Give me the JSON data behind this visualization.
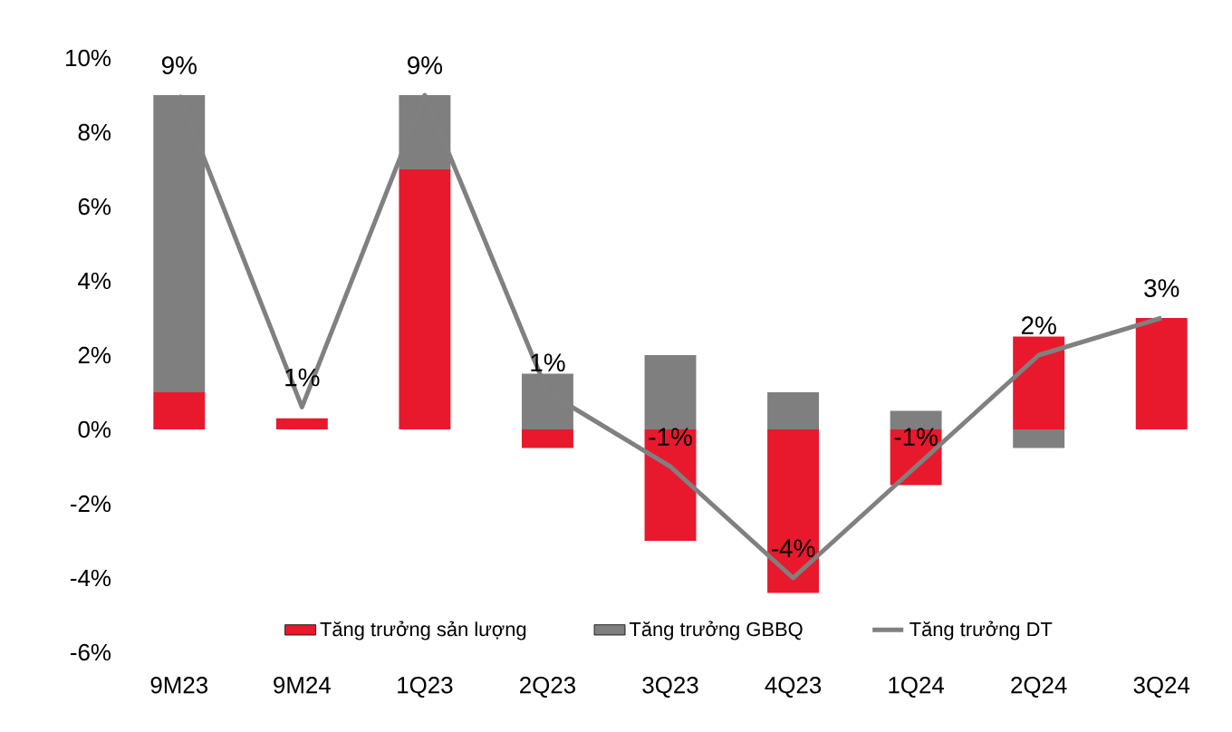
{
  "chart_data": {
    "type": "bar",
    "stacked": true,
    "categories": [
      "9M23",
      "9M24",
      "1Q23",
      "2Q23",
      "3Q23",
      "4Q23",
      "1Q24",
      "2Q24",
      "3Q24"
    ],
    "series": [
      {
        "name": "Tăng trưởng sản lượng",
        "color": "#e8192c",
        "values": [
          1,
          0.3,
          7,
          -0.5,
          -3,
          -4.4,
          -1.5,
          2.5,
          3
        ]
      },
      {
        "name": "Tăng trưởng GBBQ",
        "color": "#7f7f7f",
        "values": [
          8,
          null,
          2,
          1.5,
          2,
          1,
          0.5,
          -0.5,
          null
        ]
      },
      {
        "name": "Tăng trưởng DT",
        "type": "line",
        "color": "#808080",
        "values": [
          9,
          0.6,
          9,
          1,
          -1,
          -4,
          -1,
          2,
          3
        ],
        "value_labels": [
          "9%",
          "1%",
          "9%",
          "1%",
          "-1%",
          "-4%",
          "-1%",
          "2%",
          "3%"
        ]
      }
    ],
    "ylim": [
      -6,
      10
    ],
    "yticks": [
      {
        "value": -6,
        "label": "-6%"
      },
      {
        "value": -4,
        "label": "-4%"
      },
      {
        "value": -2,
        "label": "-2%"
      },
      {
        "value": 0,
        "label": "0%"
      },
      {
        "value": 2,
        "label": "2%"
      },
      {
        "value": 4,
        "label": "4%"
      },
      {
        "value": 6,
        "label": "6%"
      },
      {
        "value": 8,
        "label": "8%"
      },
      {
        "value": 10,
        "label": "10%"
      }
    ],
    "legend": "bottom",
    "marker": "none",
    "line_style": "solid"
  }
}
